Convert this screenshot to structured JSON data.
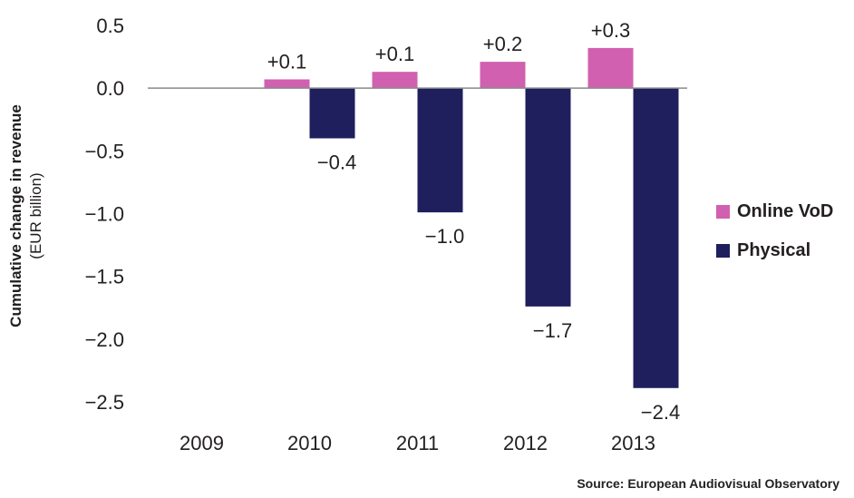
{
  "chart_data": {
    "type": "bar",
    "categories": [
      "2009",
      "2010",
      "2011",
      "2012",
      "2013"
    ],
    "series": [
      {
        "name": "Online VoD",
        "color": "#d160b0",
        "values": [
          0,
          0.07,
          0.13,
          0.21,
          0.32
        ],
        "labels": [
          "",
          "+0.1",
          "+0.1",
          "+0.2",
          "+0.3"
        ]
      },
      {
        "name": "Physical",
        "color": "#1f1f5e",
        "values": [
          0,
          -0.4,
          -0.99,
          -1.74,
          -2.39
        ],
        "labels": [
          "",
          "−0.4",
          "−1.0",
          "−1.7",
          "−2.4"
        ]
      }
    ],
    "yticks": [
      0.5,
      0.0,
      -0.5,
      -1.0,
      -1.5,
      -2.0,
      -2.5
    ],
    "ytick_labels": [
      "0.5",
      "0.0",
      "−0.5",
      "−1.0",
      "−1.5",
      "−2.0",
      "−2.5"
    ],
    "ylim": [
      -2.5,
      0.5
    ],
    "ylabel": "Cumulative change in revenue",
    "ylabel_sub": "(EUR billion)",
    "grid": false,
    "legend_position": "right"
  },
  "legend": {
    "items": [
      {
        "label": "Online VoD",
        "color": "#d160b0"
      },
      {
        "label": "Physical",
        "color": "#1f1f5e"
      }
    ]
  },
  "source": "Source: European Audiovisual Observatory"
}
